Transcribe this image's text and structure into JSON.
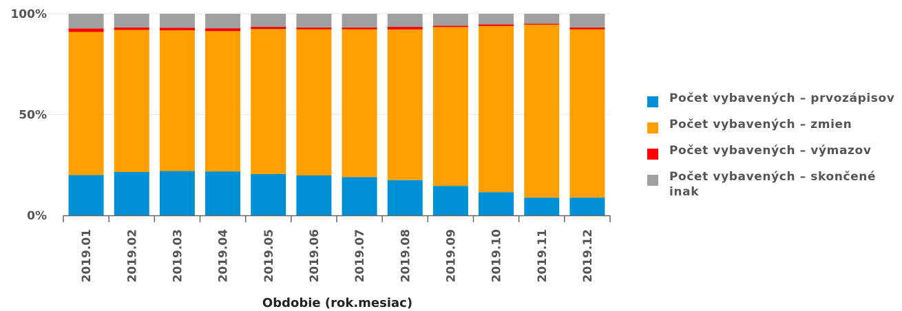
{
  "chart_data": {
    "type": "bar",
    "stacked": "percent",
    "categories": [
      "2019.01",
      "2019.02",
      "2019.03",
      "2019.04",
      "2019.05",
      "2019.06",
      "2019.07",
      "2019.08",
      "2019.09",
      "2019.10",
      "2019.11",
      "2019.12"
    ],
    "series": [
      {
        "name": "Počet vybavených – prvozápisov",
        "color": "#0090d6",
        "values": [
          20.0,
          21.5,
          22.0,
          21.8,
          20.5,
          19.8,
          19.0,
          17.5,
          14.6,
          11.5,
          8.8,
          8.8
        ]
      },
      {
        "name": "Počet vybavených – zmien",
        "color": "#ff9f00",
        "values": [
          71.0,
          70.5,
          69.8,
          69.6,
          71.9,
          72.5,
          73.3,
          74.7,
          78.8,
          82.4,
          85.8,
          83.5
        ]
      },
      {
        "name": "Počet vybavených – výmazov",
        "color": "#ff0000",
        "values": [
          1.7,
          1.2,
          1.3,
          1.4,
          1.1,
          0.9,
          0.9,
          1.3,
          0.7,
          0.8,
          0.5,
          0.9
        ]
      },
      {
        "name": "Počet vybavených – skončené inak",
        "color": "#a0a0a0",
        "values": [
          7.3,
          6.8,
          6.9,
          7.2,
          6.5,
          6.8,
          6.8,
          6.5,
          5.9,
          5.3,
          4.9,
          6.8
        ]
      }
    ],
    "y_ticks": [
      "0%",
      "50%",
      "100%"
    ],
    "ylim": [
      0,
      100
    ],
    "xlabel": "Obdobie (rok.mesiac)",
    "ylabel": "",
    "grid": true,
    "legend_position": "right"
  }
}
